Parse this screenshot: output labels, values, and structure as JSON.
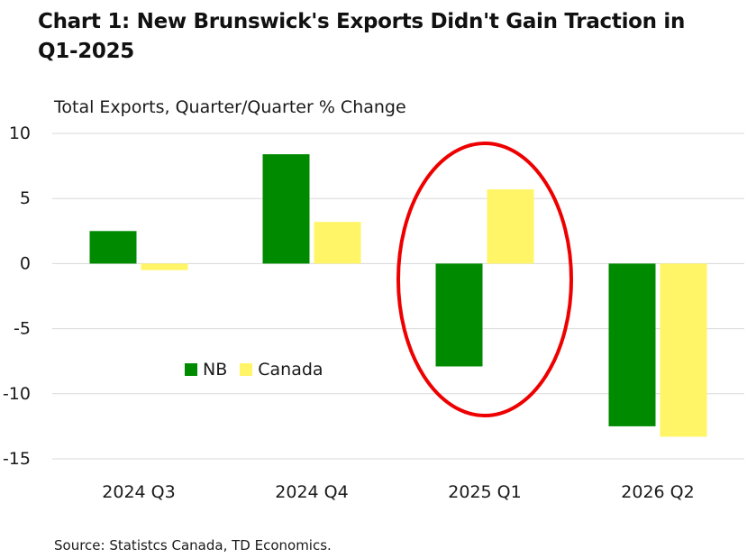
{
  "title": "Chart 1: New Brunswick's Exports Didn't Gain Traction in Q1-2025",
  "source": "Source: Statistcs Canada, TD Economics.",
  "colors": {
    "nb": "#008A00",
    "canada": "#FFF566",
    "highlight": "#EE0000",
    "grid": "#D9D9D9"
  },
  "chart_data": {
    "type": "bar",
    "ylabel": "Total Exports, Quarter/Quarter % Change",
    "categories": [
      "2024 Q3",
      "2024 Q4",
      "2025 Q1",
      "2026 Q2"
    ],
    "series": [
      {
        "name": "NB",
        "values": [
          2.5,
          8.4,
          -7.9,
          -12.5
        ]
      },
      {
        "name": "Canada",
        "values": [
          -0.5,
          3.2,
          5.7,
          -13.3
        ]
      }
    ],
    "ylim": [
      -15,
      10
    ],
    "yticks": [
      10,
      5,
      0,
      -5,
      -10,
      -15
    ],
    "grid": true,
    "legend": "center-left",
    "annotation": {
      "type": "ellipse",
      "around": "2025 Q1"
    }
  }
}
